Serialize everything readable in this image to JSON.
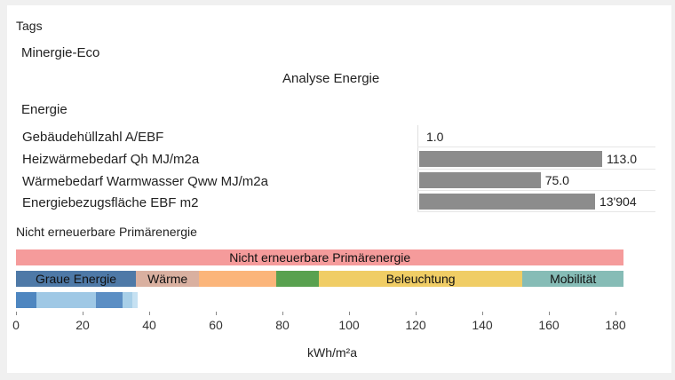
{
  "tags_label": "Tags",
  "tag": "Minergie-Eco",
  "analysis_title": "Analyse Energie",
  "section_label": "Energie",
  "metrics": [
    {
      "label": "Gebäudehüllzahl A/EBF",
      "value_text": "1.0",
      "value": 1.0
    },
    {
      "label": "Heizwärmebedarf Qh MJ/m2a",
      "value_text": "113.0",
      "value": 113.0
    },
    {
      "label": "Wärmebedarf Warmwasser Qww MJ/m2a",
      "value_text": "75.0",
      "value": 75.0
    },
    {
      "label": "Energiebezugsfläche EBF m2",
      "value_text": "13'904",
      "value": 13904
    }
  ],
  "pe_section_label": "Nicht erneuerbare Primärenergie",
  "chart_data": {
    "type": "bar",
    "total_bar": {
      "label": "Nicht erneuerbare Primärenergie",
      "start": 0,
      "end": 182.5,
      "color": "#f59b9b"
    },
    "segments": [
      {
        "label": "Graue Energie",
        "start": 0,
        "end": 36,
        "color": "#4e79a7"
      },
      {
        "label": "Wärme",
        "start": 36,
        "end": 55,
        "color": "#d9b0a0"
      },
      {
        "label": "",
        "start": 55,
        "end": 78,
        "color": "#fbb57a"
      },
      {
        "label": "",
        "start": 78,
        "end": 91,
        "color": "#59a14f"
      },
      {
        "label": "Beleuchtung",
        "start": 91,
        "end": 152,
        "color": "#f0cd65"
      },
      {
        "label": "Mobilität",
        "start": 152,
        "end": 182.5,
        "color": "#86bcb6"
      }
    ],
    "sub_segments": [
      {
        "start": 0,
        "end": 6,
        "color": "#4e86c0"
      },
      {
        "start": 6,
        "end": 24,
        "color": "#9fc8e5"
      },
      {
        "start": 24,
        "end": 32,
        "color": "#5b8ec4"
      },
      {
        "start": 32,
        "end": 35,
        "color": "#a8cfe8"
      },
      {
        "start": 35,
        "end": 36.5,
        "color": "#c6e1f2"
      }
    ],
    "xlim": [
      0,
      182.5
    ],
    "xticks": [
      0,
      20,
      40,
      60,
      80,
      100,
      120,
      140,
      160,
      180
    ],
    "xlabel": "kWh/m²a"
  }
}
